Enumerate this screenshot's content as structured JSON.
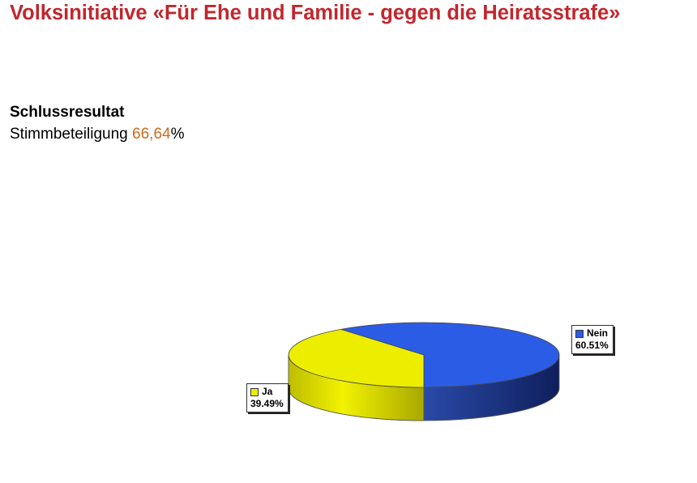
{
  "title": "Volksinitiative «Für Ehe und Familie - gegen die Heiratsstrafe»",
  "subheading": "Schlussresultat",
  "turnout": {
    "label": "Stimmbeteiligung",
    "value": "66,64",
    "unit": "%"
  },
  "chart_data": {
    "type": "pie",
    "three_d": true,
    "slices": [
      {
        "name": "Nein",
        "value": 60.51,
        "label": "60.51%",
        "color": "#2b5ce6",
        "legend_position": "right"
      },
      {
        "name": "Ja",
        "value": 39.49,
        "label": "39.49%",
        "color": "#eded00",
        "legend_position": "left"
      }
    ]
  }
}
